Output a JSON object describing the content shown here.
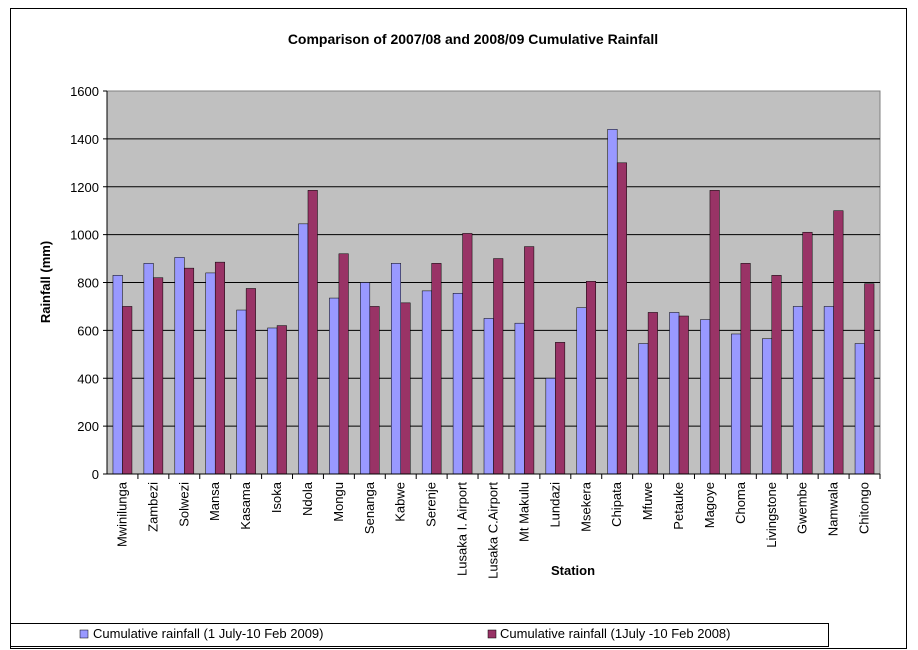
{
  "chart_data": {
    "type": "bar",
    "title": "Comparison of 2007/08 and 2008/09 Cumulative Rainfall",
    "xlabel": "Station",
    "ylabel": "Rainfall (mm)",
    "ylim": [
      0,
      1600
    ],
    "yticks": [
      "0",
      "200",
      "400",
      "600",
      "800",
      "1000",
      "1200",
      "1400",
      "1600"
    ],
    "grid": true,
    "legend_position": "bottom",
    "categories": [
      "Mwinilunga",
      "Zambezi",
      "Solwezi",
      "Mansa",
      "Kasama",
      "Isoka",
      "Ndola",
      "Mongu",
      "Senanga",
      "Kabwe",
      "Serenje",
      "Lusaka I. Airport",
      "Lusaka C.Airport",
      "Mt Makulu",
      "Lundazi",
      "Msekera",
      "Chipata",
      "Mfuwe",
      "Petauke",
      "Magoye",
      "Choma",
      "Livingstone",
      "Gwembe",
      "Namwala",
      "Chitongo"
    ],
    "series": [
      {
        "name": "Cumulative rainfall (1 July-10 Feb 2009)",
        "color": "#9999FF",
        "values": [
          830,
          880,
          905,
          840,
          685,
          610,
          1045,
          735,
          800,
          880,
          765,
          755,
          650,
          630,
          400,
          695,
          1440,
          545,
          675,
          645,
          585,
          565,
          700,
          700,
          545
        ]
      },
      {
        "name": "Cumulative rainfall (1July -10 Feb 2008)",
        "color": "#993366",
        "values": [
          700,
          820,
          860,
          885,
          775,
          620,
          1185,
          920,
          700,
          715,
          880,
          1005,
          900,
          950,
          550,
          805,
          1300,
          675,
          660,
          1185,
          880,
          830,
          1010,
          1100,
          795
        ]
      }
    ],
    "plot_background": "#C0C0C0"
  }
}
